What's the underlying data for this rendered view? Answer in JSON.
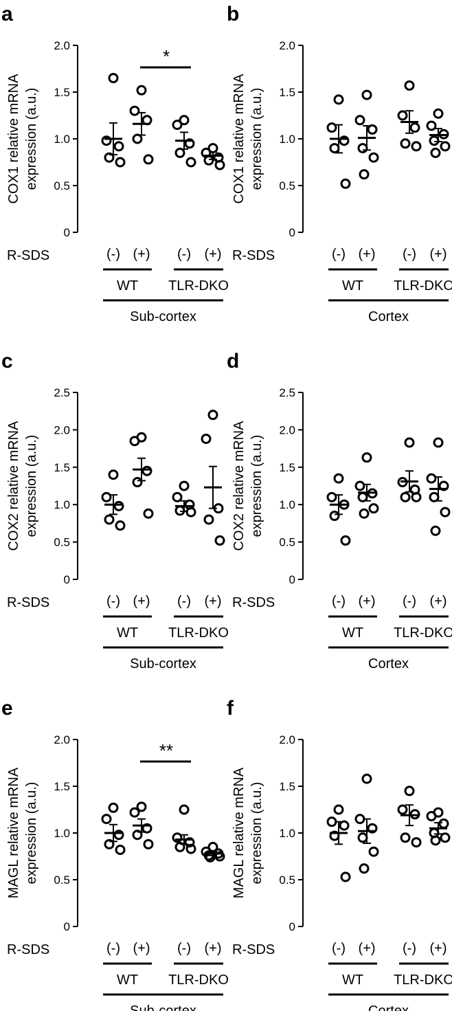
{
  "row_label": "R-SDS",
  "genotypes": [
    "WT",
    "TLR-DKO"
  ],
  "treatments": [
    "(-)",
    "(+)"
  ],
  "colors": {
    "ink": "#000000",
    "background": "#ffffff"
  },
  "chart_data": [
    {
      "panel": "a",
      "type": "scatter",
      "ylabel": [
        "COX1 relative mRNA",
        "expression (a.u.)"
      ],
      "ylim": [
        0,
        2.0
      ],
      "yticks": [
        "0",
        "0.5",
        "1.0",
        "1.5",
        "2.0"
      ],
      "region": "Sub-cortex",
      "groups": [
        {
          "genotype": "WT",
          "treatment": "(-)",
          "points": [
            1.65,
            0.98,
            0.92,
            0.8,
            0.75
          ],
          "mean": 1.0,
          "sem": 0.17
        },
        {
          "genotype": "WT",
          "treatment": "(+)",
          "points": [
            1.52,
            1.3,
            1.2,
            1.0,
            0.78
          ],
          "mean": 1.16,
          "sem": 0.12
        },
        {
          "genotype": "TLR-DKO",
          "treatment": "(-)",
          "points": [
            1.2,
            1.15,
            0.95,
            0.85,
            0.75
          ],
          "mean": 0.98,
          "sem": 0.09
        },
        {
          "genotype": "TLR-DKO",
          "treatment": "(+)",
          "points": [
            0.9,
            0.85,
            0.8,
            0.77,
            0.72
          ],
          "mean": 0.82,
          "sem": 0.04
        }
      ],
      "significance": [
        {
          "from": 1,
          "to": 2,
          "label": "*"
        }
      ]
    },
    {
      "panel": "b",
      "type": "scatter",
      "ylabel": [
        "COX1 relative mRNA",
        "expression (a.u.)"
      ],
      "ylim": [
        0,
        2.0
      ],
      "yticks": [
        "0",
        "0.5",
        "1.0",
        "1.5",
        "2.0"
      ],
      "region": "Cortex",
      "groups": [
        {
          "genotype": "WT",
          "treatment": "(-)",
          "points": [
            1.42,
            1.12,
            0.98,
            0.9,
            0.52
          ],
          "mean": 1.0,
          "sem": 0.15
        },
        {
          "genotype": "WT",
          "treatment": "(+)",
          "points": [
            1.47,
            1.2,
            1.1,
            0.9,
            0.8,
            0.62
          ],
          "mean": 1.01,
          "sem": 0.13
        },
        {
          "genotype": "TLR-DKO",
          "treatment": "(-)",
          "points": [
            1.57,
            1.25,
            1.12,
            0.95,
            0.92
          ],
          "mean": 1.18,
          "sem": 0.12
        },
        {
          "genotype": "TLR-DKO",
          "treatment": "(+)",
          "points": [
            1.27,
            1.14,
            1.05,
            0.98,
            0.92,
            0.85
          ],
          "mean": 1.04,
          "sem": 0.07
        }
      ],
      "significance": []
    },
    {
      "panel": "c",
      "type": "scatter",
      "ylabel": [
        "COX2 relative mRNA",
        "expression (a.u.)"
      ],
      "ylim": [
        0,
        2.5
      ],
      "yticks": [
        "0",
        "0.5",
        "1.0",
        "1.5",
        "2.0",
        "2.5"
      ],
      "region": "Sub-cortex",
      "groups": [
        {
          "genotype": "WT",
          "treatment": "(-)",
          "points": [
            1.4,
            1.1,
            0.98,
            0.8,
            0.72
          ],
          "mean": 1.0,
          "sem": 0.13
        },
        {
          "genotype": "WT",
          "treatment": "(+)",
          "points": [
            1.9,
            1.85,
            1.45,
            1.3,
            0.88
          ],
          "mean": 1.47,
          "sem": 0.15
        },
        {
          "genotype": "TLR-DKO",
          "treatment": "(-)",
          "points": [
            1.25,
            1.1,
            1.0,
            0.92,
            0.9
          ],
          "mean": 0.98,
          "sem": 0.07
        },
        {
          "genotype": "TLR-DKO",
          "treatment": "(+)",
          "points": [
            2.2,
            1.88,
            0.95,
            0.8,
            0.52
          ],
          "mean": 1.23,
          "sem": 0.28
        }
      ],
      "significance": []
    },
    {
      "panel": "d",
      "type": "scatter",
      "ylabel": [
        "COX2 relative mRNA",
        "expression (a.u.)"
      ],
      "ylim": [
        0,
        2.5
      ],
      "yticks": [
        "0",
        "0.5",
        "1.0",
        "1.5",
        "2.0",
        "2.5"
      ],
      "region": "Cortex",
      "groups": [
        {
          "genotype": "WT",
          "treatment": "(-)",
          "points": [
            1.35,
            1.1,
            1.0,
            0.85,
            0.52
          ],
          "mean": 1.0,
          "sem": 0.13
        },
        {
          "genotype": "WT",
          "treatment": "(+)",
          "points": [
            1.63,
            1.25,
            1.15,
            1.1,
            0.95,
            0.88
          ],
          "mean": 1.16,
          "sem": 0.11
        },
        {
          "genotype": "TLR-DKO",
          "treatment": "(-)",
          "points": [
            1.83,
            1.3,
            1.2,
            1.1,
            1.1
          ],
          "mean": 1.31,
          "sem": 0.14
        },
        {
          "genotype": "TLR-DKO",
          "treatment": "(+)",
          "points": [
            1.83,
            1.35,
            1.25,
            1.1,
            0.9,
            0.65
          ],
          "mean": 1.21,
          "sem": 0.16
        }
      ],
      "significance": []
    },
    {
      "panel": "e",
      "type": "scatter",
      "ylabel": [
        "MAGL relative mRNA",
        "expression (a.u.)"
      ],
      "ylim": [
        0,
        2.0
      ],
      "yticks": [
        "0",
        "0.5",
        "1.0",
        "1.5",
        "2.0"
      ],
      "region": "Sub-cortex",
      "groups": [
        {
          "genotype": "WT",
          "treatment": "(-)",
          "points": [
            1.27,
            1.15,
            0.98,
            0.88,
            0.82
          ],
          "mean": 1.0,
          "sem": 0.09
        },
        {
          "genotype": "WT",
          "treatment": "(+)",
          "points": [
            1.28,
            1.22,
            1.05,
            0.98,
            0.88
          ],
          "mean": 1.08,
          "sem": 0.07
        },
        {
          "genotype": "TLR-DKO",
          "treatment": "(-)",
          "points": [
            1.25,
            0.95,
            0.9,
            0.85,
            0.83
          ],
          "mean": 0.93,
          "sem": 0.05
        },
        {
          "genotype": "TLR-DKO",
          "treatment": "(+)",
          "points": [
            0.85,
            0.8,
            0.78,
            0.76,
            0.75,
            0.74
          ],
          "mean": 0.78,
          "sem": 0.02
        }
      ],
      "significance": [
        {
          "from": 1,
          "to": 2,
          "label": "**"
        }
      ]
    },
    {
      "panel": "f",
      "type": "scatter",
      "ylabel": [
        "MAGL relative mRNA",
        "expression (a.u.)"
      ],
      "ylim": [
        0,
        2.0
      ],
      "yticks": [
        "0",
        "0.5",
        "1.0",
        "1.5",
        "2.0"
      ],
      "region": "Cortex",
      "groups": [
        {
          "genotype": "WT",
          "treatment": "(-)",
          "points": [
            1.25,
            1.12,
            1.08,
            0.97,
            0.53
          ],
          "mean": 1.0,
          "sem": 0.12
        },
        {
          "genotype": "WT",
          "treatment": "(+)",
          "points": [
            1.58,
            1.15,
            1.05,
            0.95,
            0.8,
            0.62
          ],
          "mean": 1.02,
          "sem": 0.13
        },
        {
          "genotype": "TLR-DKO",
          "treatment": "(-)",
          "points": [
            1.45,
            1.25,
            1.2,
            0.95,
            0.9
          ],
          "mean": 1.19,
          "sem": 0.11
        },
        {
          "genotype": "TLR-DKO",
          "treatment": "(+)",
          "points": [
            1.22,
            1.18,
            1.1,
            1.0,
            0.95,
            0.92
          ],
          "mean": 1.05,
          "sem": 0.06
        }
      ],
      "significance": []
    }
  ]
}
